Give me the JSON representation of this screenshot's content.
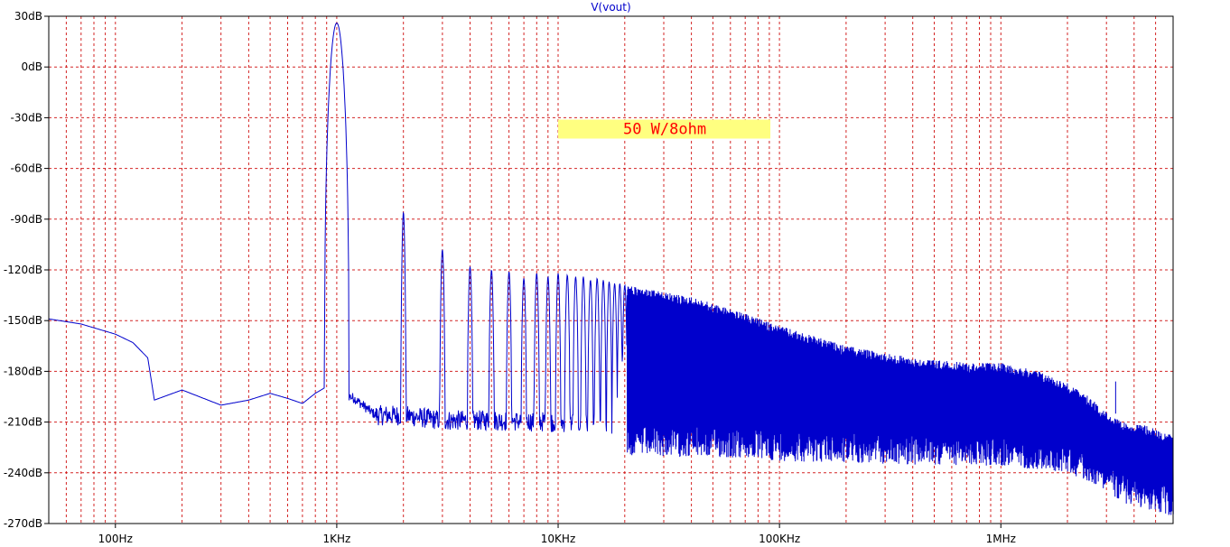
{
  "chart_data": {
    "type": "line",
    "title": "V(vout)",
    "xlabel": "",
    "ylabel": "",
    "x_scale": "log",
    "xlim": [
      50,
      6000000
    ],
    "ylim": [
      -270,
      30
    ],
    "grid": true,
    "x_tick_labels": [
      {
        "value": 100,
        "label": "100Hz"
      },
      {
        "value": 1000,
        "label": "1KHz"
      },
      {
        "value": 10000,
        "label": "10KHz"
      },
      {
        "value": 100000,
        "label": "100KHz"
      },
      {
        "value": 1000000,
        "label": "1MHz"
      }
    ],
    "y_tick_labels": [
      {
        "value": 30,
        "label": "30dB"
      },
      {
        "value": 0,
        "label": "0dB"
      },
      {
        "value": -30,
        "label": "-30dB"
      },
      {
        "value": -60,
        "label": "-60dB"
      },
      {
        "value": -90,
        "label": "-90dB"
      },
      {
        "value": -120,
        "label": "-120dB"
      },
      {
        "value": -150,
        "label": "-150dB"
      },
      {
        "value": -180,
        "label": "-180dB"
      },
      {
        "value": -210,
        "label": "-210dB"
      },
      {
        "value": -240,
        "label": "-240dB"
      },
      {
        "value": -270,
        "label": "-270dB"
      }
    ],
    "annotation": {
      "text": "50 W/8ohm",
      "x": 10000,
      "y": -37
    },
    "series": [
      {
        "name": "V(vout)",
        "color": "#0000cc",
        "fundamental_hz": 1000,
        "harmonic_peaks_db": [
          [
            1000,
            26
          ],
          [
            2000,
            -86
          ],
          [
            3000,
            -108
          ],
          [
            4000,
            -118
          ],
          [
            5000,
            -120
          ],
          [
            6000,
            -121
          ],
          [
            7000,
            -125
          ],
          [
            8000,
            -122
          ],
          [
            9000,
            -124
          ],
          [
            10000,
            -122
          ],
          [
            11000,
            -123
          ],
          [
            12000,
            -124
          ],
          [
            13000,
            -124
          ],
          [
            14000,
            -126
          ],
          [
            15000,
            -125
          ],
          [
            16000,
            -126
          ],
          [
            17000,
            -127
          ],
          [
            18000,
            -128
          ],
          [
            19000,
            -128
          ],
          [
            20000,
            -129
          ]
        ],
        "noise_floor_db": [
          [
            50,
            -149
          ],
          [
            70,
            -152
          ],
          [
            100,
            -158
          ],
          [
            120,
            -163
          ],
          [
            140,
            -172
          ],
          [
            150,
            -197
          ],
          [
            200,
            -191
          ],
          [
            300,
            -200
          ],
          [
            400,
            -197
          ],
          [
            500,
            -193
          ],
          [
            600,
            -196
          ],
          [
            700,
            -199
          ],
          [
            800,
            -193
          ],
          [
            900,
            -189
          ],
          [
            1200,
            -196
          ],
          [
            1500,
            -206
          ],
          [
            2000,
            -206
          ],
          [
            3000,
            -209
          ],
          [
            5000,
            -209
          ],
          [
            10000,
            -210
          ],
          [
            20000,
            -212
          ],
          [
            50000,
            -213
          ],
          [
            100000,
            -215
          ],
          [
            300000,
            -217
          ],
          [
            1000000,
            -218
          ],
          [
            2000000,
            -222
          ],
          [
            3000000,
            -232
          ],
          [
            3500000,
            -240
          ],
          [
            5000000,
            -245
          ],
          [
            6000000,
            -250
          ]
        ],
        "harmonic_envelope_db": [
          [
            20000,
            -129
          ],
          [
            40000,
            -136
          ],
          [
            60000,
            -143
          ],
          [
            100000,
            -153
          ],
          [
            200000,
            -165
          ],
          [
            400000,
            -172
          ],
          [
            700000,
            -175
          ],
          [
            1000000,
            -175
          ],
          [
            1500000,
            -180
          ],
          [
            2000000,
            -187
          ],
          [
            2500000,
            -195
          ],
          [
            3000000,
            -204
          ],
          [
            3500000,
            -210
          ],
          [
            4500000,
            -212
          ],
          [
            6000000,
            -218
          ]
        ],
        "spur": [
          3300000,
          -186
        ]
      }
    ]
  }
}
